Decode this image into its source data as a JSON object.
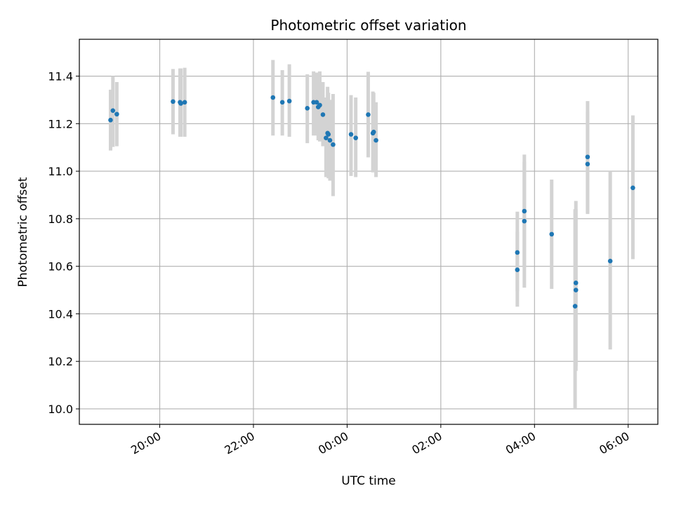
{
  "chart_data": {
    "type": "scatter",
    "title": "Photometric offset variation",
    "xlabel": "UTC time",
    "ylabel": "Photometric offset",
    "x_tick_labels": [
      "20:00",
      "22:00",
      "00:00",
      "02:00",
      "04:00",
      "06:00"
    ],
    "y_tick_labels": [
      "10.0",
      "10.2",
      "10.4",
      "10.6",
      "10.8",
      "11.0",
      "11.2",
      "11.4"
    ],
    "xlim": [
      "18:17",
      "06:38"
    ],
    "ylim": [
      9.935,
      11.555
    ],
    "grid": true,
    "colors": {
      "point": "#1f77b4",
      "errorbar": "#d3d3d3",
      "grid": "#b0b0b0"
    },
    "points": [
      {
        "x": "18:57",
        "y": 11.215,
        "err_low": 11.087,
        "err_high": 11.343
      },
      {
        "x": "19:00",
        "y": 11.255,
        "err_low": 11.102,
        "err_high": 11.4
      },
      {
        "x": "19:05",
        "y": 11.24,
        "err_low": 11.105,
        "err_high": 11.375
      },
      {
        "x": "20:17",
        "y": 11.293,
        "err_low": 11.155,
        "err_high": 11.43
      },
      {
        "x": "20:26",
        "y": 11.29,
        "err_low": 11.145,
        "err_high": 11.432
      },
      {
        "x": "20:27",
        "y": 11.285,
        "err_low": 11.145,
        "err_high": 11.432
      },
      {
        "x": "20:32",
        "y": 11.29,
        "err_low": 11.145,
        "err_high": 11.435
      },
      {
        "x": "22:25",
        "y": 11.31,
        "err_low": 11.15,
        "err_high": 11.468
      },
      {
        "x": "22:37",
        "y": 11.29,
        "err_low": 11.15,
        "err_high": 11.425
      },
      {
        "x": "22:46",
        "y": 11.295,
        "err_low": 11.145,
        "err_high": 11.45
      },
      {
        "x": "23:09",
        "y": 11.265,
        "err_low": 11.118,
        "err_high": 11.408
      },
      {
        "x": "23:17",
        "y": 11.29,
        "err_low": 11.15,
        "err_high": 11.42
      },
      {
        "x": "23:21",
        "y": 11.29,
        "err_low": 11.15,
        "err_high": 11.415
      },
      {
        "x": "23:23",
        "y": 11.27,
        "err_low": 11.13,
        "err_high": 11.41
      },
      {
        "x": "23:25",
        "y": 11.278,
        "err_low": 11.125,
        "err_high": 11.42
      },
      {
        "x": "23:29",
        "y": 11.238,
        "err_low": 11.105,
        "err_high": 11.375
      },
      {
        "x": "23:33",
        "y": 11.14,
        "err_low": 10.975,
        "err_high": 11.31
      },
      {
        "x": "23:35",
        "y": 11.16,
        "err_low": 10.99,
        "err_high": 11.355
      },
      {
        "x": "23:36",
        "y": 11.155,
        "err_low": 10.97,
        "err_high": 11.33
      },
      {
        "x": "23:38",
        "y": 11.13,
        "err_low": 10.96,
        "err_high": 11.3
      },
      {
        "x": "23:42",
        "y": 11.112,
        "err_low": 10.895,
        "err_high": 11.325
      },
      {
        "x": "00:05",
        "y": 11.155,
        "err_low": 10.98,
        "err_high": 11.32
      },
      {
        "x": "00:11",
        "y": 11.14,
        "err_low": 10.975,
        "err_high": 11.31
      },
      {
        "x": "00:27",
        "y": 11.238,
        "err_low": 11.058,
        "err_high": 11.418
      },
      {
        "x": "00:33",
        "y": 11.16,
        "err_low": 10.995,
        "err_high": 11.335
      },
      {
        "x": "00:34",
        "y": 11.165,
        "err_low": 11.0,
        "err_high": 11.33
      },
      {
        "x": "00:37",
        "y": 11.13,
        "err_low": 10.975,
        "err_high": 11.29
      },
      {
        "x": "03:38",
        "y": 10.585,
        "err_low": 10.43,
        "err_high": 10.745
      },
      {
        "x": "03:38",
        "y": 10.658,
        "err_low": 10.495,
        "err_high": 10.83
      },
      {
        "x": "03:47",
        "y": 10.79,
        "err_low": 10.51,
        "err_high": 11.04
      },
      {
        "x": "03:47",
        "y": 10.832,
        "err_low": 10.595,
        "err_high": 11.07
      },
      {
        "x": "04:22",
        "y": 10.735,
        "err_low": 10.505,
        "err_high": 10.965
      },
      {
        "x": "04:52",
        "y": 10.432,
        "err_low": 10.0,
        "err_high": 10.84
      },
      {
        "x": "04:53",
        "y": 10.53,
        "err_low": 10.18,
        "err_high": 10.875
      },
      {
        "x": "04:53",
        "y": 10.5,
        "err_low": 10.16,
        "err_high": 10.84
      },
      {
        "x": "05:08",
        "y": 11.06,
        "err_low": 10.825,
        "err_high": 11.295
      },
      {
        "x": "05:08",
        "y": 11.03,
        "err_low": 10.82,
        "err_high": 11.25
      },
      {
        "x": "05:37",
        "y": 10.622,
        "err_low": 10.25,
        "err_high": 11.0
      },
      {
        "x": "06:06",
        "y": 10.93,
        "err_low": 10.63,
        "err_high": 11.235
      }
    ]
  }
}
